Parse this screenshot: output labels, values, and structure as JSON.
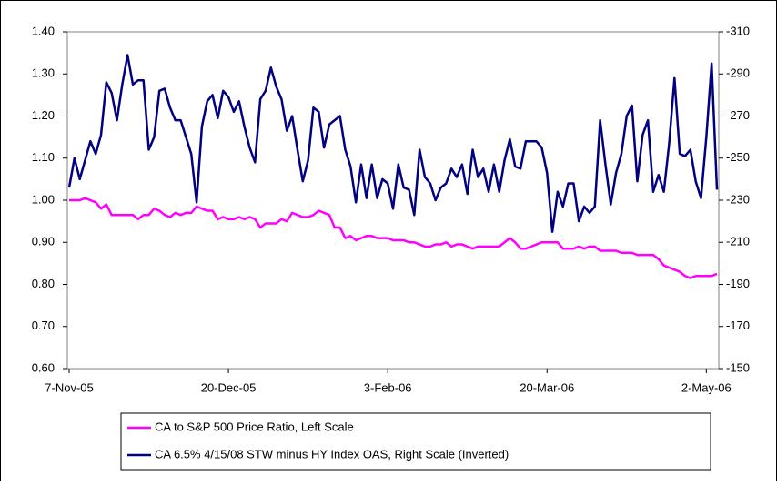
{
  "chart_data": {
    "type": "line",
    "categories": [
      "7-Nov-05",
      null,
      null,
      null,
      null,
      null,
      null,
      null,
      null,
      null,
      null,
      null,
      null,
      null,
      null,
      null,
      null,
      null,
      null,
      null,
      null,
      null,
      null,
      null,
      null,
      null,
      null,
      null,
      null,
      null,
      "20-Dec-05",
      null,
      null,
      null,
      null,
      null,
      null,
      null,
      null,
      null,
      null,
      null,
      null,
      null,
      null,
      null,
      null,
      null,
      null,
      null,
      null,
      null,
      null,
      null,
      null,
      null,
      null,
      null,
      null,
      null,
      "3-Feb-06",
      null,
      null,
      null,
      null,
      null,
      null,
      null,
      null,
      null,
      null,
      null,
      null,
      null,
      null,
      null,
      null,
      null,
      null,
      null,
      null,
      null,
      null,
      null,
      null,
      null,
      null,
      null,
      null,
      null,
      "20-Mar-06",
      null,
      null,
      null,
      null,
      null,
      null,
      null,
      null,
      null,
      null,
      null,
      null,
      null,
      null,
      null,
      null,
      null,
      null,
      null,
      null,
      null,
      null,
      null,
      null,
      null,
      null,
      null,
      null,
      null,
      "2-May-06",
      null,
      null
    ],
    "series": [
      {
        "name": "CA to S&P 500 Price Ratio, Left Scale",
        "color": "#ff00ff",
        "axis": "y",
        "values": [
          1.0,
          1.0,
          1.0,
          1.005,
          1.0,
          0.995,
          0.98,
          0.99,
          0.965,
          0.965,
          0.965,
          0.965,
          0.965,
          0.955,
          0.965,
          0.965,
          0.98,
          0.975,
          0.965,
          0.96,
          0.97,
          0.965,
          0.97,
          0.97,
          0.985,
          0.98,
          0.975,
          0.975,
          0.955,
          0.96,
          0.955,
          0.955,
          0.96,
          0.955,
          0.96,
          0.955,
          0.935,
          0.945,
          0.945,
          0.945,
          0.955,
          0.95,
          0.97,
          0.965,
          0.96,
          0.96,
          0.965,
          0.975,
          0.97,
          0.965,
          0.935,
          0.935,
          0.91,
          0.915,
          0.905,
          0.91,
          0.915,
          0.915,
          0.91,
          0.91,
          0.91,
          0.905,
          0.905,
          0.905,
          0.9,
          0.9,
          0.895,
          0.89,
          0.89,
          0.895,
          0.895,
          0.9,
          0.89,
          0.895,
          0.895,
          0.89,
          0.885,
          0.89,
          0.89,
          0.89,
          0.89,
          0.89,
          0.9,
          0.91,
          0.9,
          0.885,
          0.885,
          0.89,
          0.895,
          0.9,
          0.9,
          0.9,
          0.9,
          0.885,
          0.885,
          0.885,
          0.89,
          0.885,
          0.89,
          0.89,
          0.88,
          0.88,
          0.88,
          0.88,
          0.875,
          0.875,
          0.875,
          0.87,
          0.87,
          0.87,
          0.87,
          0.86,
          0.845,
          0.84,
          0.835,
          0.83,
          0.82,
          0.815,
          0.82,
          0.82,
          0.82,
          0.82,
          0.825
        ]
      },
      {
        "name": "CA 6.5% 4/15/08 STW minus HY Index OAS, Right Scale (Inverted)",
        "color": "#000080",
        "axis": "y2",
        "values": [
          -236,
          -250,
          -240,
          -249,
          -258,
          -252,
          -261,
          -286,
          -281,
          -268,
          -285,
          -299,
          -285,
          -287,
          -287,
          -254,
          -260,
          -282,
          -283,
          -274,
          -268,
          -268,
          -260,
          -252,
          -229,
          -265,
          -277,
          -280,
          -269,
          -282,
          -279,
          -272,
          -277,
          -265,
          -255,
          -248,
          -278,
          -282,
          -293,
          -284,
          -278,
          -263,
          -270,
          -254,
          -239,
          -249,
          -274,
          -272,
          -255,
          -266,
          -268,
          -270,
          -254,
          -246,
          -229,
          -247,
          -231,
          -247,
          -231,
          -240,
          -238,
          -226,
          -247,
          -236,
          -235,
          -223,
          -254,
          -241,
          -238,
          -230,
          -236,
          -238,
          -245,
          -241,
          -247,
          -233,
          -254,
          -241,
          -245,
          -234,
          -247,
          -234,
          -249,
          -259,
          -246,
          -245,
          -258,
          -258,
          -258,
          -255,
          -243,
          -215,
          -234,
          -227,
          -238,
          -238,
          -220,
          -227,
          -224,
          -227,
          -268,
          -247,
          -228,
          -243,
          -252,
          -270,
          -275,
          -239,
          -261,
          -268,
          -234,
          -242,
          -234,
          -257,
          -288,
          -252,
          -251,
          -254,
          -239,
          -231,
          -260,
          -295,
          -235
        ]
      }
    ],
    "ylim": [
      0.6,
      1.4
    ],
    "yticks": [
      {
        "value": 0.6,
        "label": "0.60"
      },
      {
        "value": 0.7,
        "label": "0.70"
      },
      {
        "value": 0.8,
        "label": "0.80"
      },
      {
        "value": 0.9,
        "label": "0.90"
      },
      {
        "value": 1.0,
        "label": "1.00"
      },
      {
        "value": 1.1,
        "label": "1.10"
      },
      {
        "value": 1.2,
        "label": "1.20"
      },
      {
        "value": 1.3,
        "label": "1.30"
      },
      {
        "value": 1.4,
        "label": "1.40"
      }
    ],
    "y2lim": [
      -150,
      -310
    ],
    "y2ticks": [
      -310,
      -290,
      -270,
      -250,
      -230,
      -210,
      -190,
      -170,
      -150
    ],
    "y2_inverted": true,
    "grid": false,
    "legend": "bottom"
  }
}
